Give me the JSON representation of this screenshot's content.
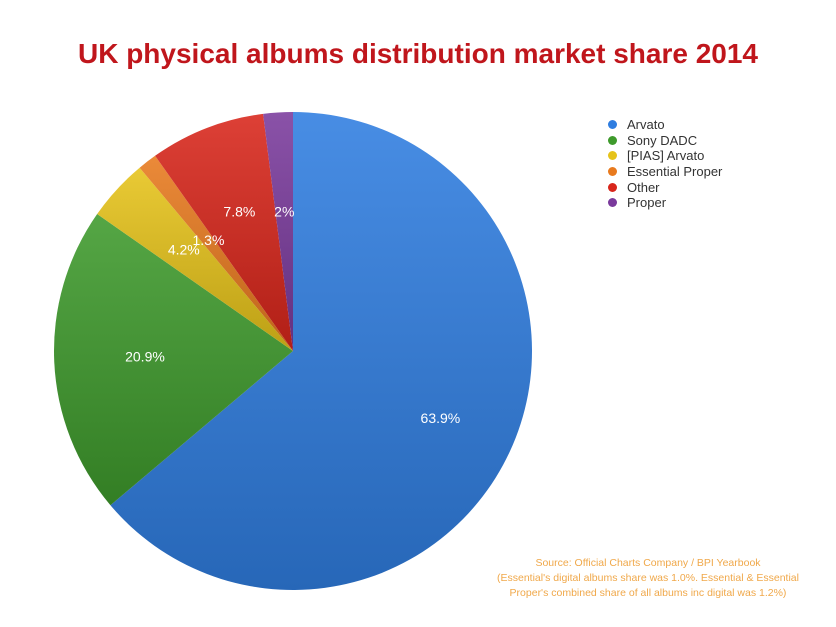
{
  "chart_data": {
    "type": "pie",
    "title": "UK physical albums distribution market share 2014",
    "slices": [
      {
        "name": "Arvato",
        "value": 63.9,
        "label": "63.9%",
        "color": "#2f7de0"
      },
      {
        "name": "Sony DADC",
        "value": 20.9,
        "label": "20.9%",
        "color": "#3e9a2c"
      },
      {
        "name": "[PIAS] Arvato",
        "value": 4.2,
        "label": "4.2%",
        "color": "#e6c31a"
      },
      {
        "name": "Essential Proper",
        "value": 1.3,
        "label": "1.3%",
        "color": "#e87a1e"
      },
      {
        "name": "Other",
        "value": 7.8,
        "label": "7.8%",
        "color": "#d8261b"
      },
      {
        "name": "Proper",
        "value": 2,
        "label": "2%",
        "color": "#7a3a9c"
      }
    ],
    "legend_position": "top-right",
    "source_lines": [
      "Source: Official Charts Company / BPI Yearbook",
      "(Essential's digital albums share was 1.0%. Essential & Essential",
      "Proper's combined share of all albums inc digital was 1.2%)"
    ]
  }
}
